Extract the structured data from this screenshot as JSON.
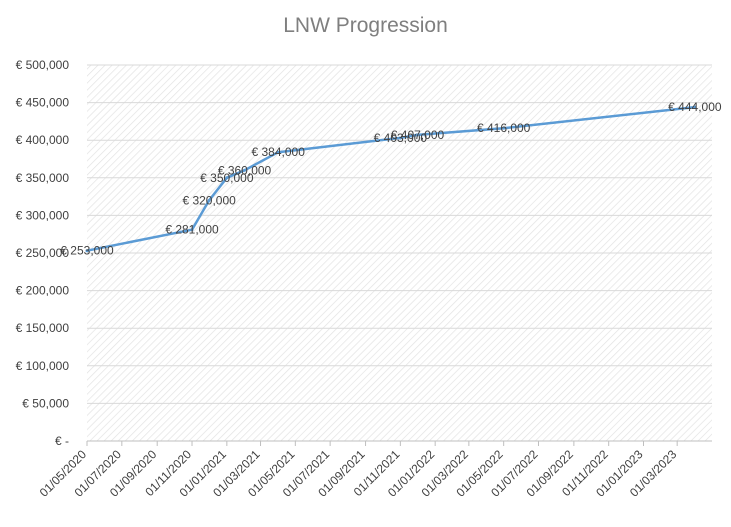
{
  "chart_data": {
    "type": "line",
    "title": "LNW Progression",
    "xlabel": "",
    "ylabel": "",
    "ylim": [
      0,
      500000
    ],
    "y_ticks": [
      0,
      50000,
      100000,
      150000,
      200000,
      250000,
      300000,
      350000,
      400000,
      450000,
      500000
    ],
    "y_tick_labels": [
      "€ -",
      "€ 50,000",
      "€ 100,000",
      "€ 150,000",
      "€ 200,000",
      "€ 250,000",
      "€ 300,000",
      "€ 350,000",
      "€ 400,000",
      "€ 450,000",
      "€ 500,000"
    ],
    "x_tick_labels": [
      "01/05/2020",
      "01/07/2020",
      "01/09/2020",
      "01/11/2020",
      "01/01/2021",
      "01/03/2021",
      "01/05/2021",
      "01/07/2021",
      "01/09/2021",
      "01/11/2021",
      "01/01/2022",
      "01/03/2022",
      "01/05/2022",
      "01/07/2022",
      "01/09/2022",
      "01/11/2022",
      "01/01/2023",
      "01/03/2023"
    ],
    "xlim": [
      "01/05/2020",
      "01/05/2023"
    ],
    "grid": true,
    "series": [
      {
        "color": "#5b9bd5",
        "points": [
          {
            "x": "01/05/2020",
            "y": 253000,
            "label": "€ 253,000"
          },
          {
            "x": "01/11/2020",
            "y": 281000,
            "label": "€ 281,000"
          },
          {
            "x": "01/12/2020",
            "y": 320000,
            "label": "€ 320,000"
          },
          {
            "x": "01/01/2021",
            "y": 350000,
            "label": "€ 350,000"
          },
          {
            "x": "01/02/2021",
            "y": 360000,
            "label": "€ 360,000"
          },
          {
            "x": "01/04/2021",
            "y": 384000,
            "label": "€ 384,000"
          },
          {
            "x": "01/11/2021",
            "y": 403000,
            "label": "€ 403,000"
          },
          {
            "x": "01/12/2021",
            "y": 407000,
            "label": "€ 407,000"
          },
          {
            "x": "01/05/2022",
            "y": 416000,
            "label": "€ 416,000"
          },
          {
            "x": "01/04/2023",
            "y": 444000,
            "label": "€ 444,000"
          }
        ]
      }
    ]
  },
  "colors": {
    "line": "#5b9bd5",
    "gridline": "#d9d9d9",
    "hatch": "#e2e2e2",
    "text": "#404040",
    "title": "#7f7f7f"
  }
}
